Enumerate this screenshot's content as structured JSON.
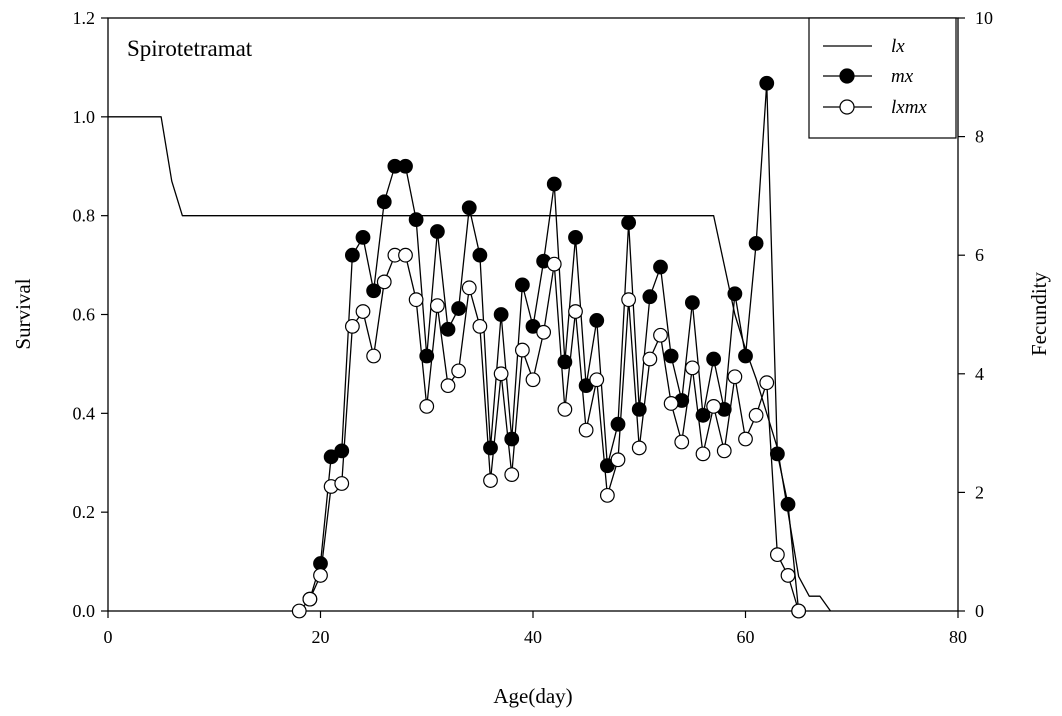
{
  "chart_data": {
    "type": "line",
    "title": "Spirotetramat",
    "xlabel": "Age(day)",
    "ylabel": "Survival",
    "y2label": "Fecundity",
    "xlim": [
      0,
      80
    ],
    "ylim": [
      0,
      1.2
    ],
    "y2lim": [
      0,
      10
    ],
    "xticks": [
      0,
      20,
      40,
      60,
      80
    ],
    "yticks": [
      "0.0",
      "0.2",
      "0.4",
      "0.6",
      "0.8",
      "1.0",
      "1.2"
    ],
    "y2ticks": [
      0,
      2,
      4,
      6,
      8,
      10
    ],
    "grid": false,
    "legend_position": "top-right",
    "series": [
      {
        "name": "lx",
        "axis": "left",
        "marker": "none",
        "points": [
          [
            0,
            1.0
          ],
          [
            5,
            1.0
          ],
          [
            6,
            0.87
          ],
          [
            7,
            0.8
          ],
          [
            57,
            0.8
          ],
          [
            59,
            0.6
          ],
          [
            60,
            0.53
          ],
          [
            61,
            0.47
          ],
          [
            62,
            0.4
          ],
          [
            63,
            0.33
          ],
          [
            64,
            0.2
          ],
          [
            65,
            0.07
          ],
          [
            66,
            0.03
          ],
          [
            67,
            0.03
          ],
          [
            68,
            0.0
          ]
        ]
      },
      {
        "name": "mx",
        "axis": "right",
        "marker": "filled-circle",
        "points": [
          [
            19,
            0.2
          ],
          [
            20,
            0.8
          ],
          [
            21,
            2.6
          ],
          [
            22,
            2.7
          ],
          [
            23,
            6.0
          ],
          [
            24,
            6.3
          ],
          [
            25,
            5.4
          ],
          [
            26,
            6.9
          ],
          [
            27,
            7.5
          ],
          [
            28,
            7.5
          ],
          [
            29,
            6.6
          ],
          [
            30,
            4.3
          ],
          [
            31,
            6.4
          ],
          [
            32,
            4.75
          ],
          [
            33,
            5.1
          ],
          [
            34,
            6.8
          ],
          [
            35,
            6.0
          ],
          [
            36,
            2.75
          ],
          [
            37,
            5.0
          ],
          [
            38,
            2.9
          ],
          [
            39,
            5.5
          ],
          [
            40,
            4.8
          ],
          [
            41,
            5.9
          ],
          [
            42,
            7.2
          ],
          [
            43,
            4.2
          ],
          [
            44,
            6.3
          ],
          [
            45,
            3.8
          ],
          [
            46,
            4.9
          ],
          [
            47,
            2.45
          ],
          [
            48,
            3.15
          ],
          [
            49,
            6.55
          ],
          [
            50,
            3.4
          ],
          [
            51,
            5.3
          ],
          [
            52,
            5.8
          ],
          [
            53,
            4.3
          ],
          [
            54,
            3.55
          ],
          [
            55,
            5.2
          ],
          [
            56,
            3.3
          ],
          [
            57,
            4.25
          ],
          [
            58,
            3.4
          ],
          [
            59,
            5.35
          ],
          [
            60,
            4.3
          ],
          [
            61,
            6.2
          ],
          [
            62,
            8.9
          ],
          [
            63,
            2.65
          ],
          [
            64,
            1.8
          ],
          [
            65,
            0.0
          ]
        ]
      },
      {
        "name": "lxmx",
        "axis": "right",
        "marker": "open-circle",
        "points": [
          [
            18,
            0.0
          ],
          [
            19,
            0.2
          ],
          [
            20,
            0.6
          ],
          [
            21,
            2.1
          ],
          [
            22,
            2.15
          ],
          [
            23,
            4.8
          ],
          [
            24,
            5.05
          ],
          [
            25,
            4.3
          ],
          [
            26,
            5.55
          ],
          [
            27,
            6.0
          ],
          [
            28,
            6.0
          ],
          [
            29,
            5.25
          ],
          [
            30,
            3.45
          ],
          [
            31,
            5.15
          ],
          [
            32,
            3.8
          ],
          [
            33,
            4.05
          ],
          [
            34,
            5.45
          ],
          [
            35,
            4.8
          ],
          [
            36,
            2.2
          ],
          [
            37,
            4.0
          ],
          [
            38,
            2.3
          ],
          [
            39,
            4.4
          ],
          [
            40,
            3.9
          ],
          [
            41,
            4.7
          ],
          [
            42,
            5.85
          ],
          [
            43,
            3.4
          ],
          [
            44,
            5.05
          ],
          [
            45,
            3.05
          ],
          [
            46,
            3.9
          ],
          [
            47,
            1.95
          ],
          [
            48,
            2.55
          ],
          [
            49,
            5.25
          ],
          [
            50,
            2.75
          ],
          [
            51,
            4.25
          ],
          [
            52,
            4.65
          ],
          [
            53,
            3.5
          ],
          [
            54,
            2.85
          ],
          [
            55,
            4.1
          ],
          [
            56,
            2.65
          ],
          [
            57,
            3.45
          ],
          [
            58,
            2.7
          ],
          [
            59,
            3.95
          ],
          [
            60,
            2.9
          ],
          [
            61,
            3.3
          ],
          [
            62,
            3.85
          ],
          [
            63,
            0.95
          ],
          [
            64,
            0.6
          ],
          [
            65,
            0.0
          ]
        ]
      }
    ]
  }
}
